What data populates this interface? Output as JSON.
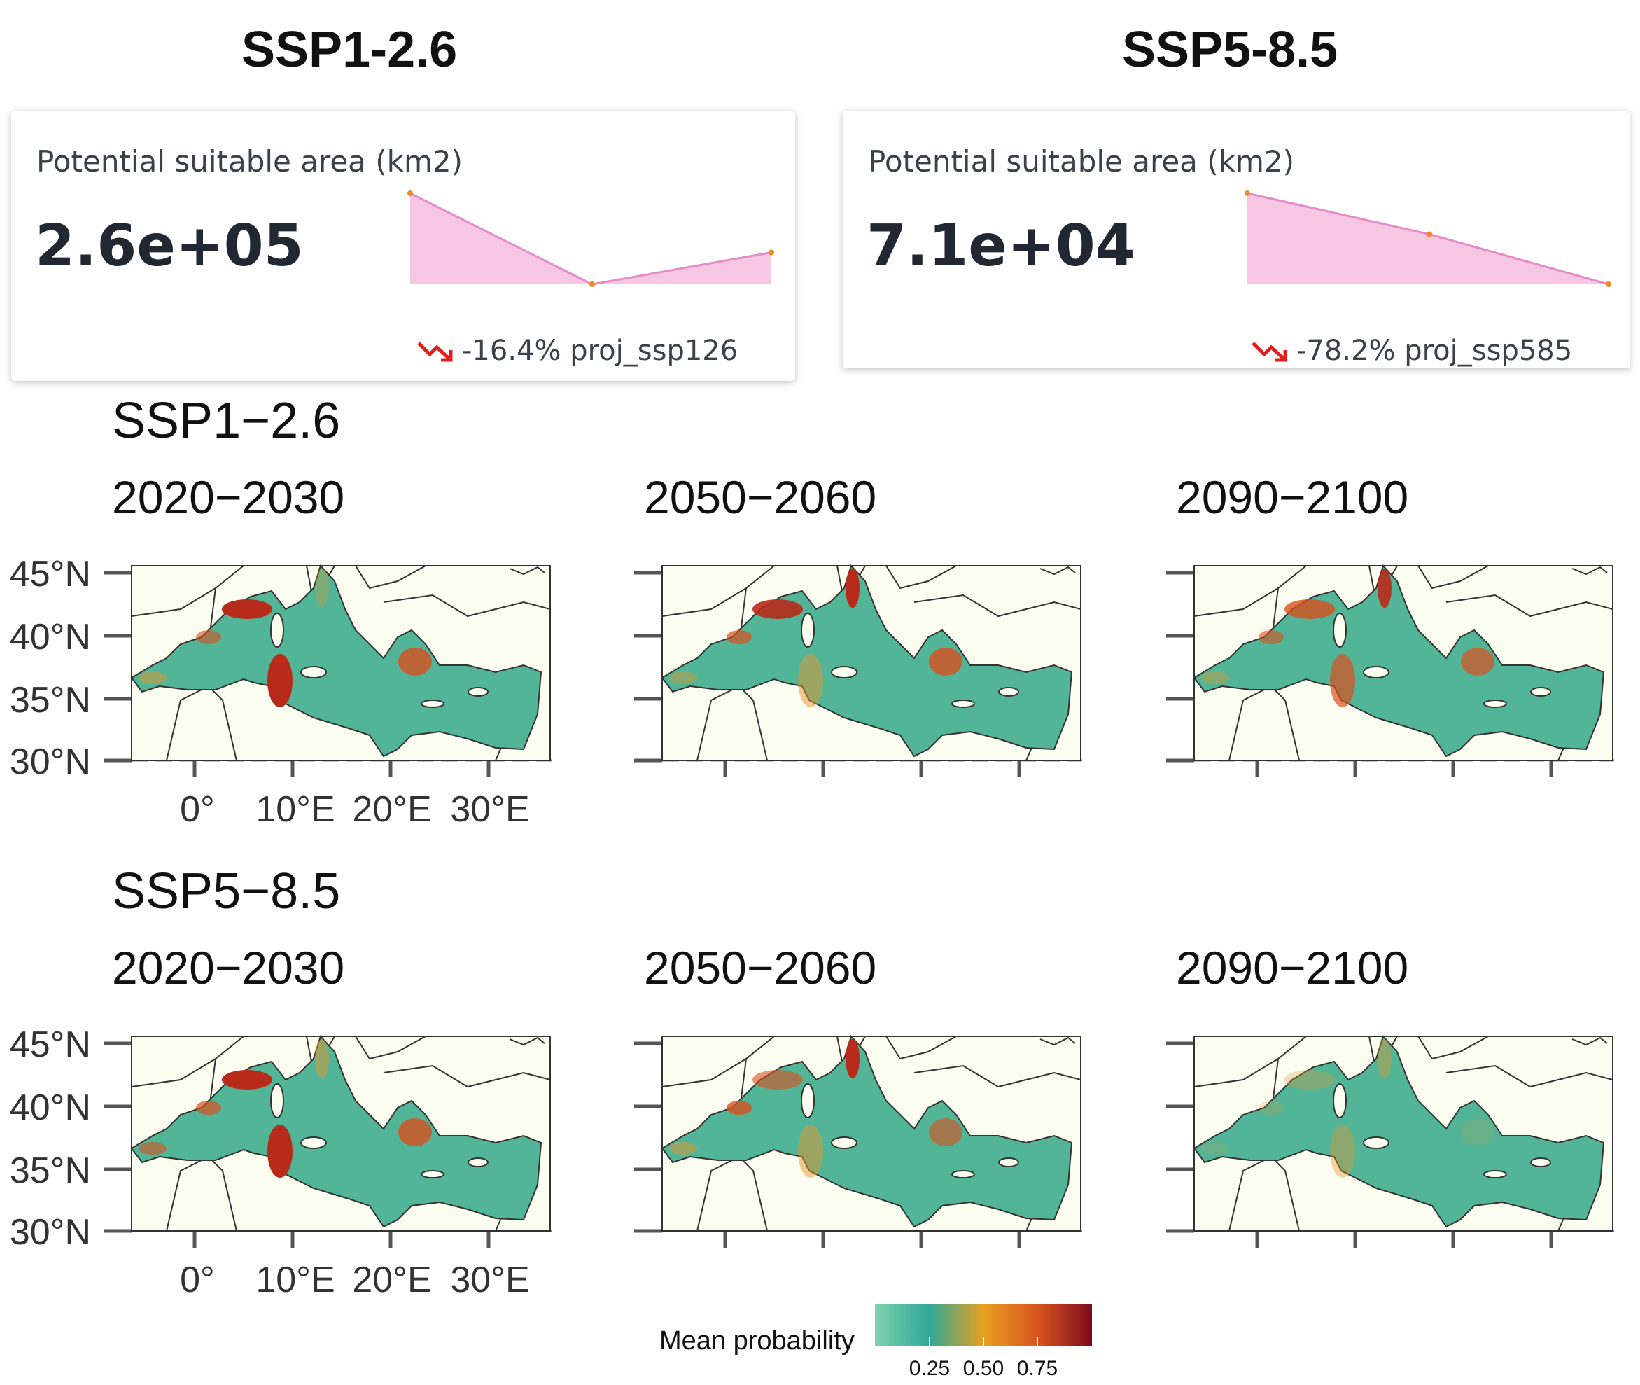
{
  "headers": {
    "left": "SSP1-2.6",
    "right": "SSP5-8.5"
  },
  "cards": [
    {
      "label": "Potential suitable area (km2)",
      "value": "2.6e+05",
      "delta": "-16.4% proj_ssp126",
      "sparkline": [
        1.0,
        0.0,
        0.35
      ]
    },
    {
      "label": "Potential suitable area (km2)",
      "value": "7.1e+04",
      "delta": "-78.2% proj_ssp585",
      "sparkline": [
        1.0,
        0.55,
        0.0
      ]
    }
  ],
  "sections": [
    {
      "title": "SSP1−2.6",
      "periods": [
        "2020−2030",
        "2050−2060",
        "2090−2100"
      ]
    },
    {
      "title": "SSP5−8.5",
      "periods": [
        "2020−2030",
        "2050−2060",
        "2090−2100"
      ]
    }
  ],
  "axes": {
    "lat": [
      "45°N",
      "40°N",
      "35°N",
      "30°N"
    ],
    "lon": [
      "0°",
      "10°E",
      "20°E",
      "30°E"
    ]
  },
  "legend": {
    "title": "Mean probability",
    "ticks": [
      "0.25",
      "0.50",
      "0.75"
    ],
    "colors": [
      "#7fd3ae",
      "#2ea896",
      "#e8a020",
      "#d9541e",
      "#7d0b1e"
    ]
  },
  "colors": {
    "land": "#fcfdf1",
    "sea": "#53b598",
    "hot": "#d8501e",
    "accent_red": "#e02020",
    "spark": "#e87fbf"
  }
}
